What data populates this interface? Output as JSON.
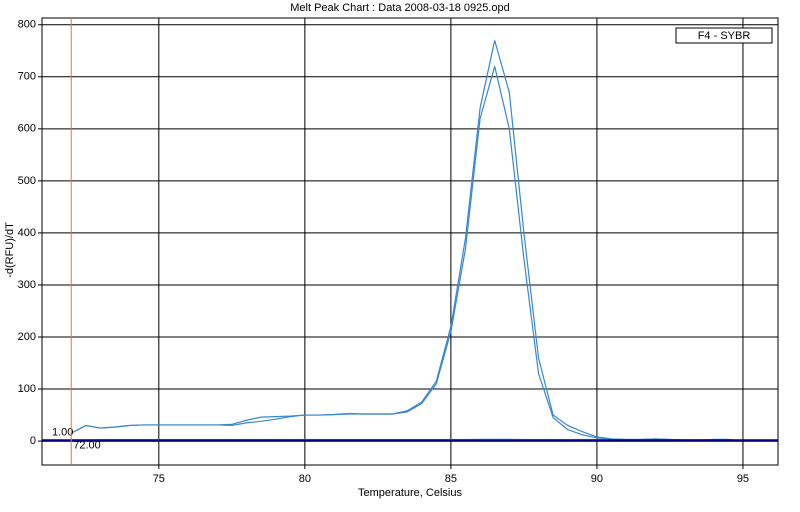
{
  "chart_data": {
    "type": "line",
    "title": "Melt Peak Chart : Data 2008-03-18 0925.opd",
    "xlabel": "Temperature, Celsius",
    "ylabel": "-d(RFU)/dT",
    "legend": "F4 - SYBR",
    "xlim": [
      71,
      96.2
    ],
    "ylim": [
      -46,
      813
    ],
    "xticks": [
      75,
      80,
      85,
      90,
      95
    ],
    "yticks": [
      0,
      100,
      200,
      300,
      400,
      500,
      600,
      700,
      800
    ],
    "grid": true,
    "threshold": {
      "value": 1,
      "label": "1.00",
      "color": "#000080"
    },
    "marker": {
      "value": 72,
      "label": "72.00",
      "color": "#f07030"
    },
    "x": [
      72,
      72.5,
      73,
      73.5,
      74,
      74.5,
      75,
      75.5,
      76,
      76.5,
      77,
      77.5,
      78,
      78.5,
      79,
      79.5,
      80,
      80.5,
      81,
      81.5,
      82,
      82.5,
      83,
      83.5,
      84,
      84.5,
      85,
      85.5,
      86,
      86.5,
      87,
      87.5,
      88,
      88.5,
      89,
      89.5,
      90,
      90.5,
      91,
      91.5,
      92,
      92.5,
      93,
      93.5,
      94,
      94.5,
      95
    ],
    "series": [
      {
        "color": "#3a86d0",
        "values": [
          15,
          30,
          25,
          27,
          30,
          31,
          31,
          31,
          31,
          31,
          31,
          32,
          40,
          46,
          47,
          48,
          50,
          50,
          51,
          53,
          52,
          52,
          52,
          58,
          75,
          115,
          220,
          390,
          640,
          770,
          670,
          400,
          160,
          50,
          30,
          18,
          8,
          4,
          3,
          3,
          4,
          3,
          2,
          2,
          3,
          3,
          0
        ]
      },
      {
        "color": "#3a86d0",
        "values": [
          15,
          30,
          25,
          27,
          30,
          31,
          31,
          31,
          31,
          31,
          31,
          30,
          35,
          38,
          42,
          47,
          50,
          50,
          51,
          52,
          52,
          52,
          52,
          56,
          72,
          110,
          210,
          370,
          620,
          720,
          600,
          350,
          130,
          45,
          22,
          12,
          6,
          4,
          3,
          3,
          4,
          3,
          2,
          2,
          3,
          3,
          0
        ]
      },
      {
        "color": "#a8d0f0",
        "values": [
          2,
          2,
          3,
          3,
          3,
          3,
          3,
          3,
          3,
          3,
          3,
          3,
          3,
          3,
          3,
          3,
          3,
          3,
          3,
          3,
          3,
          3,
          3,
          3,
          3,
          3,
          3,
          3,
          4,
          4,
          4,
          3,
          3,
          3,
          3,
          3,
          3,
          2,
          2,
          2,
          2,
          2,
          2,
          2,
          2,
          2,
          2
        ]
      }
    ]
  }
}
